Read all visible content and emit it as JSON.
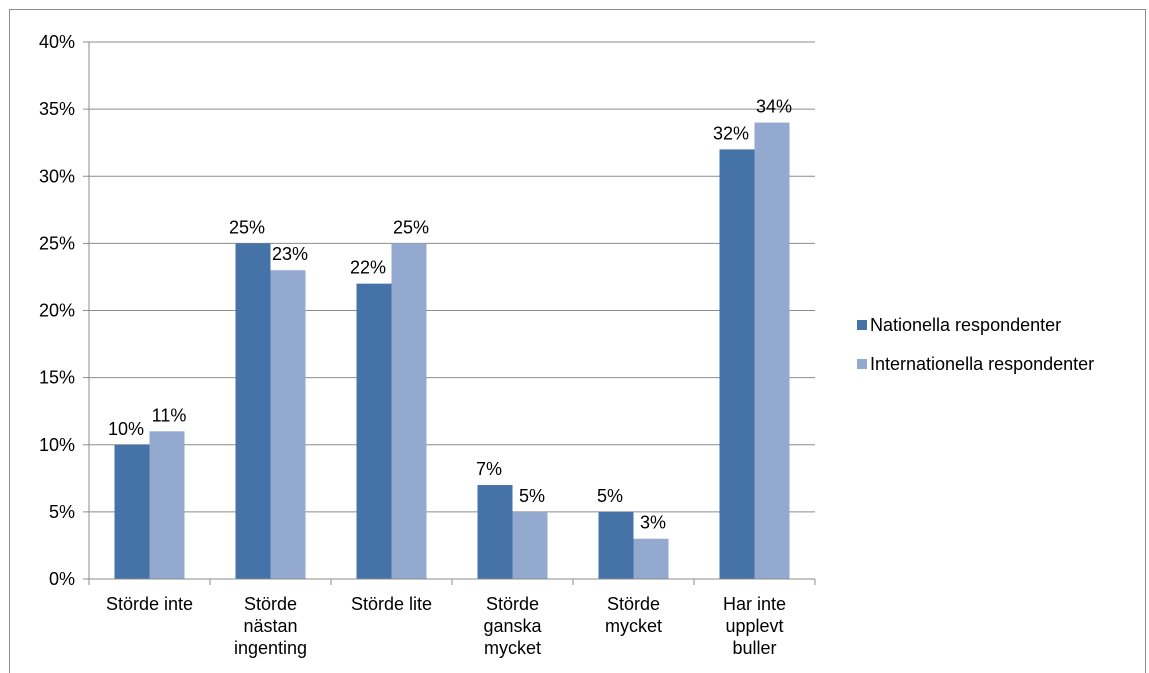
{
  "chart_data": {
    "type": "bar",
    "title": "",
    "xlabel": "",
    "ylabel": "",
    "ylim": [
      0,
      40
    ],
    "yticks": [
      "0%",
      "5%",
      "10%",
      "15%",
      "20%",
      "25%",
      "30%",
      "35%",
      "40%"
    ],
    "grid": true,
    "legend_position": "right",
    "categories": [
      [
        "Störde inte"
      ],
      [
        "Störde",
        "nästan",
        "ingenting"
      ],
      [
        "Störde lite"
      ],
      [
        "Störde",
        "ganska",
        "mycket"
      ],
      [
        "Störde",
        "mycket"
      ],
      [
        "Har inte",
        "upplevt",
        "buller"
      ]
    ],
    "series": [
      {
        "name": "Nationella respondenter",
        "color": "#4572a7",
        "values": [
          10,
          25,
          22,
          7,
          5,
          32
        ],
        "labels": [
          "10%",
          "25%",
          "22%",
          "7%",
          "5%",
          "32%"
        ]
      },
      {
        "name": "Internationella respondenter",
        "color": "#93a9cf",
        "values": [
          11,
          23,
          25,
          5,
          3,
          34
        ],
        "labels": [
          "11%",
          "23%",
          "25%",
          "5%",
          "3%",
          "34%"
        ]
      }
    ]
  }
}
